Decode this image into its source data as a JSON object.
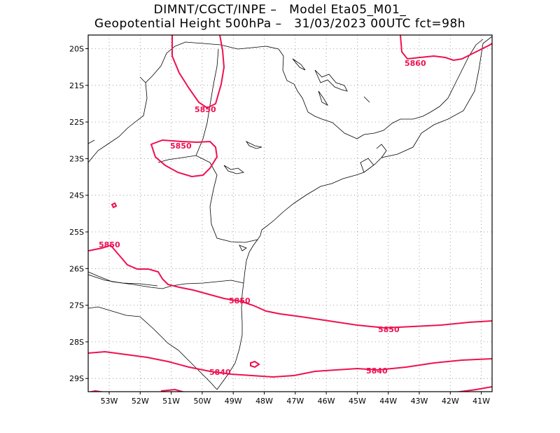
{
  "title": {
    "line1": "DIMNT/CGCT/INPE –   Model Eta05_M01_",
    "line2": "Geopotential Height 500hPa –   31/03/2023 00UTC fct=98h"
  },
  "axes": {
    "lat_labels": [
      "20S",
      "21S",
      "22S",
      "23S",
      "24S",
      "25S",
      "26S",
      "27S",
      "28S",
      "29S"
    ],
    "lon_labels": [
      "53W",
      "52W",
      "51W",
      "50W",
      "49W",
      "48W",
      "47W",
      "46W",
      "45W",
      "44W",
      "43W",
      "42W",
      "41W"
    ]
  },
  "contour_labels": [
    "5850",
    "5850",
    "5860",
    "5850",
    "5850",
    "5850",
    "5840",
    "5840"
  ],
  "colors": {
    "contour": "#ee1150",
    "coastline": "#000000",
    "grid": "#888888"
  }
}
